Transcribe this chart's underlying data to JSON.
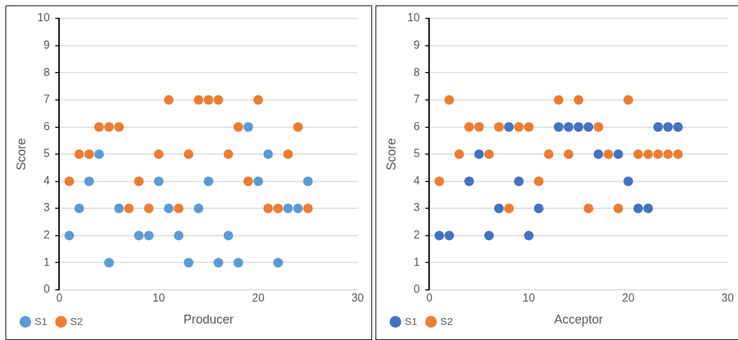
{
  "chart_data": [
    {
      "type": "scatter",
      "xlabel": "Producer",
      "ylabel": "Score",
      "x": [
        1,
        2,
        3,
        4,
        5,
        6,
        7,
        8,
        9,
        10,
        11,
        12,
        13,
        14,
        15,
        16,
        17,
        18,
        19,
        20,
        21,
        22,
        23,
        24,
        25
      ],
      "xlim": [
        0,
        30
      ],
      "xticks": [
        0,
        10,
        20,
        30
      ],
      "ylim": [
        0,
        10
      ],
      "yticks": [
        0,
        1,
        2,
        3,
        4,
        5,
        6,
        7,
        8,
        9,
        10
      ],
      "grid": "y",
      "legend": "bottom left",
      "marker": "circle",
      "series": [
        {
          "name": "S1",
          "color": "#5b9bd5",
          "values": [
            2,
            3,
            4,
            5,
            1,
            3,
            null,
            2,
            2,
            4,
            3,
            2,
            1,
            3,
            4,
            1,
            2,
            1,
            6,
            4,
            5,
            1,
            3,
            3,
            4
          ]
        },
        {
          "name": "S2",
          "color": "#ed7d31",
          "values": [
            4,
            5,
            5,
            6,
            6,
            6,
            3,
            4,
            3,
            5,
            7,
            3,
            5,
            7,
            7,
            7,
            5,
            6,
            4,
            7,
            3,
            3,
            5,
            6,
            3
          ]
        }
      ]
    },
    {
      "type": "scatter",
      "xlabel": "Acceptor",
      "ylabel": "Score",
      "x": [
        1,
        2,
        3,
        4,
        5,
        6,
        7,
        8,
        9,
        10,
        11,
        12,
        13,
        14,
        15,
        16,
        17,
        18,
        19,
        20,
        21,
        22,
        23,
        24,
        25
      ],
      "xlim": [
        0,
        30
      ],
      "xticks": [
        0,
        10,
        20,
        30
      ],
      "ylim": [
        0,
        10
      ],
      "yticks": [
        0,
        1,
        2,
        3,
        4,
        5,
        6,
        7,
        8,
        9,
        10
      ],
      "grid": "y",
      "legend": "bottom left",
      "marker": "circle",
      "series": [
        {
          "name": "S1",
          "color": "#4472c4",
          "values": [
            2,
            2,
            null,
            4,
            5,
            2,
            3,
            6,
            4,
            2,
            3,
            null,
            6,
            6,
            6,
            6,
            5,
            null,
            5,
            4,
            3,
            3,
            6,
            6,
            6
          ]
        },
        {
          "name": "S2",
          "color": "#ed7d31",
          "values": [
            4,
            7,
            5,
            6,
            6,
            5,
            6,
            3,
            6,
            6,
            4,
            5,
            7,
            5,
            7,
            3,
            6,
            5,
            3,
            7,
            5,
            5,
            5,
            5,
            5
          ]
        }
      ]
    }
  ]
}
